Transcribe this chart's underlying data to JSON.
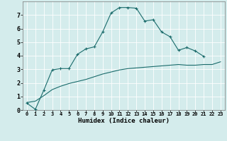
{
  "xlabel": "Humidex (Indice chaleur)",
  "background_color": "#d4ecec",
  "grid_color": "#ffffff",
  "line_color": "#1a6b6b",
  "xlim": [
    -0.5,
    23.5
  ],
  "ylim": [
    0,
    8
  ],
  "xticks": [
    0,
    1,
    2,
    3,
    4,
    5,
    6,
    7,
    8,
    9,
    10,
    11,
    12,
    13,
    14,
    15,
    16,
    17,
    18,
    19,
    20,
    21,
    22,
    23
  ],
  "yticks": [
    0,
    1,
    2,
    3,
    4,
    5,
    6,
    7
  ],
  "curve1_x": [
    0,
    1,
    2,
    3,
    4,
    5,
    6,
    7,
    8,
    9,
    10,
    11,
    12,
    13,
    14,
    15,
    16,
    17,
    18,
    19,
    20,
    21
  ],
  "curve1_y": [
    0.5,
    0.05,
    1.45,
    2.95,
    3.05,
    3.05,
    4.1,
    4.5,
    4.65,
    5.75,
    7.15,
    7.55,
    7.55,
    7.5,
    6.55,
    6.65,
    5.75,
    5.4,
    4.4,
    4.6,
    4.35,
    3.95
  ],
  "curve2_x": [
    0,
    1,
    2,
    3,
    4,
    5,
    6,
    7,
    8,
    9,
    10,
    11,
    12,
    13,
    14,
    15,
    16,
    17,
    18,
    19,
    20,
    21,
    22,
    23
  ],
  "curve2_y": [
    0.55,
    0.65,
    1.05,
    1.5,
    1.75,
    1.95,
    2.1,
    2.25,
    2.45,
    2.65,
    2.8,
    2.95,
    3.05,
    3.1,
    3.15,
    3.2,
    3.25,
    3.3,
    3.35,
    3.3,
    3.3,
    3.35,
    3.35,
    3.55
  ]
}
